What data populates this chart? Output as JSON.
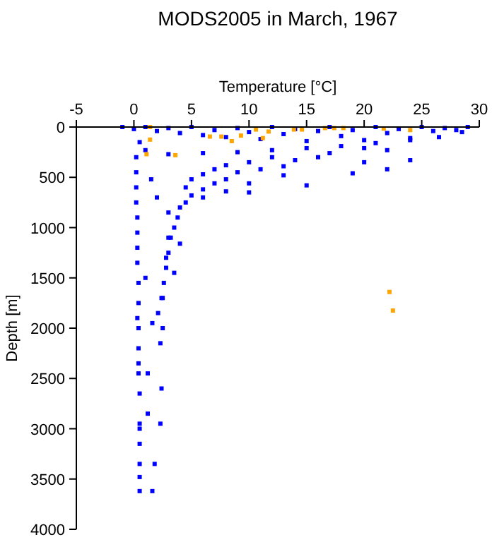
{
  "chart_data": {
    "type": "scatter",
    "title": "MODS2005 in March, 1967",
    "xlabel": "Temperature [°C]",
    "ylabel": "Depth [m]",
    "xlim": [
      -5,
      30
    ],
    "xticks": [
      -5,
      0,
      5,
      10,
      15,
      20,
      25,
      30
    ],
    "ylim": [
      4000,
      0
    ],
    "yticks": [
      0,
      500,
      1000,
      1500,
      2000,
      2500,
      3000,
      3500,
      4000
    ],
    "grid": false,
    "marker": "square",
    "series": [
      {
        "color": "#0000ff",
        "x": [
          -1,
          0,
          1,
          2,
          3,
          4,
          5,
          6,
          7,
          8,
          9,
          10,
          11,
          12,
          13,
          14,
          15,
          16,
          17,
          18,
          19,
          20,
          21,
          22,
          23,
          24,
          25,
          26,
          27,
          28,
          29,
          28.5,
          26.5,
          24,
          21,
          18,
          15,
          12,
          9,
          6,
          3,
          1,
          0.5,
          20,
          22,
          17,
          16,
          14,
          12,
          10,
          8,
          7,
          6,
          5,
          4.5,
          13,
          11,
          9,
          8,
          7,
          6,
          5,
          4.5,
          4,
          3.8,
          3.5,
          3.2,
          3,
          2.8,
          2.6,
          2.5,
          13,
          10,
          8,
          6,
          20,
          22,
          24,
          19,
          15,
          10,
          1.5,
          2,
          3,
          3,
          2.8,
          3.5,
          4,
          1,
          0.2,
          0.2,
          0.2,
          0.2,
          0.3,
          0.3,
          0.3,
          0.3,
          0.4,
          0.4,
          0.3,
          0.4,
          0.4,
          0.4,
          0.4,
          0.5,
          0.5,
          0.5,
          0.5,
          0.5,
          0.5,
          0.5,
          2.1,
          2.3,
          2.4,
          2.3,
          1.6,
          2.4,
          1.2,
          1.8,
          1.6,
          2.5,
          1.2
        ],
        "values": [
          0,
          20,
          0,
          40,
          10,
          60,
          0,
          80,
          30,
          100,
          10,
          50,
          120,
          0,
          70,
          20,
          140,
          40,
          0,
          90,
          30,
          130,
          0,
          60,
          20,
          110,
          0,
          40,
          10,
          30,
          0,
          50,
          100,
          130,
          160,
          190,
          210,
          230,
          250,
          260,
          270,
          230,
          150,
          210,
          230,
          260,
          300,
          330,
          300,
          350,
          380,
          420,
          470,
          520,
          600,
          390,
          420,
          450,
          520,
          560,
          620,
          680,
          750,
          800,
          900,
          1000,
          1100,
          1250,
          1400,
          1550,
          1700,
          480,
          560,
          640,
          700,
          350,
          420,
          330,
          460,
          580,
          650,
          520,
          700,
          850,
          1100,
          1300,
          1450,
          1160,
          1500,
          300,
          450,
          600,
          750,
          900,
          1050,
          1200,
          1350,
          1550,
          1750,
          1900,
          2000,
          2200,
          2350,
          2450,
          2650,
          2950,
          3000,
          3150,
          3350,
          3480,
          3620,
          1850,
          2150,
          2600,
          2950,
          1950,
          1700,
          2450,
          3350,
          3620,
          2000,
          2850
        ]
      },
      {
        "color": "#ffa500",
        "x": [
          1.4,
          1.4,
          1.1,
          6.6,
          7.6,
          8.5,
          9.3,
          10.6,
          11.2,
          11.7,
          13.9,
          14.6,
          16.6,
          17.4,
          18.2,
          21.7,
          24,
          3.6,
          22.2,
          22.5
        ],
        "values": [
          0,
          125,
          270,
          95,
          95,
          140,
          85,
          25,
          110,
          45,
          25,
          25,
          10,
          10,
          10,
          15,
          30,
          280,
          1640,
          1825
        ]
      }
    ]
  }
}
